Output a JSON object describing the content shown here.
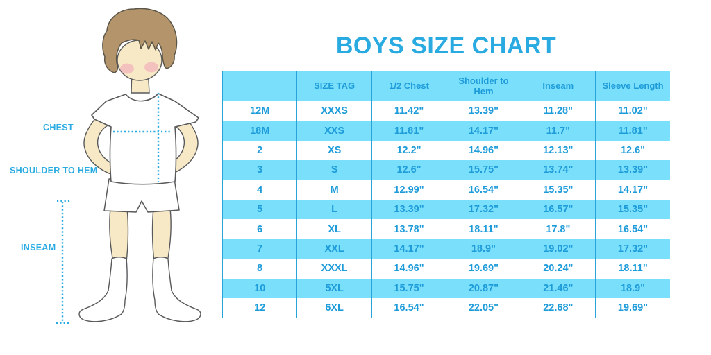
{
  "title": "BOYS SIZE CHART",
  "diagram": {
    "chest_label": "CHEST",
    "shoulder_to_hem_label": "SHOULDER TO HEM",
    "inseam_label": "INSEAM"
  },
  "chart_data": {
    "type": "table",
    "title": "BOYS SIZE CHART",
    "columns": [
      "",
      "SIZE TAG",
      "1/2 Chest",
      "Shoulder to Hem",
      "Inseam",
      "Sleeve Length"
    ],
    "rows": [
      [
        "12M",
        "XXXS",
        "11.42\"",
        "13.39\"",
        "11.28\"",
        "11.02\""
      ],
      [
        "18M",
        "XXS",
        "11.81\"",
        "14.17\"",
        "11.7\"",
        "11.81\""
      ],
      [
        "2",
        "XS",
        "12.2\"",
        "14.96\"",
        "12.13\"",
        "12.6\""
      ],
      [
        "3",
        "S",
        "12.6\"",
        "15.75\"",
        "13.74\"",
        "13.39\""
      ],
      [
        "4",
        "M",
        "12.99\"",
        "16.54\"",
        "15.35\"",
        "14.17\""
      ],
      [
        "5",
        "L",
        "13.39\"",
        "17.32\"",
        "16.57\"",
        "15.35\""
      ],
      [
        "6",
        "XL",
        "13.78\"",
        "18.11\"",
        "17.8\"",
        "16.54\""
      ],
      [
        "7",
        "XXL",
        "14.17\"",
        "18.9\"",
        "19.02\"",
        "17.32\""
      ],
      [
        "8",
        "XXXL",
        "14.96\"",
        "19.69\"",
        "20.24\"",
        "18.11\""
      ],
      [
        "10",
        "5XL",
        "15.75\"",
        "20.87\"",
        "21.46\"",
        "18.9\""
      ],
      [
        "12",
        "6XL",
        "16.54\"",
        "22.05\"",
        "22.68\"",
        "19.69\""
      ]
    ]
  },
  "colors": {
    "accent": "#29ABE2",
    "row_fill": "#79DFFB",
    "table_text": "#1E9CD9",
    "grid_line": "#2AA4D8",
    "skin": "#F8E9C6",
    "hair": "#B3946B",
    "outline": "#58595B"
  }
}
